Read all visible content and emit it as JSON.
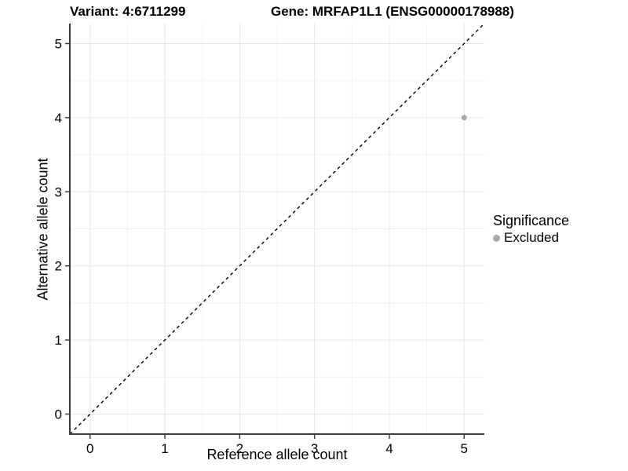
{
  "header": {
    "variant_title": "Variant: 4:6711299",
    "gene_title": "Gene: MRFAP1L1 (ENSG00000178988)"
  },
  "axes": {
    "x_label": "Reference allele count",
    "y_label": "Alternative allele count"
  },
  "legend": {
    "title": "Significance",
    "items": [
      {
        "label": "Excluded",
        "color": "#aaaaaa"
      }
    ]
  },
  "colors": {
    "background": "#ffffff",
    "grid_major": "#e6e6e6",
    "grid_minor": "#f2f2f2",
    "axis_line": "#3c3c3c",
    "tick_mark": "#3c3c3c",
    "text": "#000000",
    "identity_line": "#000000",
    "point": "#aaaaaa"
  },
  "chart_data": {
    "type": "scatter",
    "title": "Variant: 4:6711299 | Gene: MRFAP1L1 (ENSG00000178988)",
    "xlabel": "Reference allele count",
    "ylabel": "Alternative allele count",
    "xlim": [
      -0.27,
      5.27
    ],
    "ylim": [
      -0.27,
      5.27
    ],
    "x_ticks": [
      0,
      1,
      2,
      3,
      4,
      5
    ],
    "y_ticks": [
      0,
      1,
      2,
      3,
      4,
      5
    ],
    "minor_grid_step": 0.5,
    "grid": "on",
    "legend_position": "right-center",
    "series": [
      {
        "name": "Excluded",
        "color": "#aaaaaa",
        "marker": "circle",
        "marker_radius": 3.5,
        "points": [
          {
            "x": 5,
            "y": 4
          }
        ]
      }
    ],
    "reference_line": {
      "type": "identity",
      "equation": "y = x",
      "style": "dashed",
      "color": "#000000"
    }
  }
}
